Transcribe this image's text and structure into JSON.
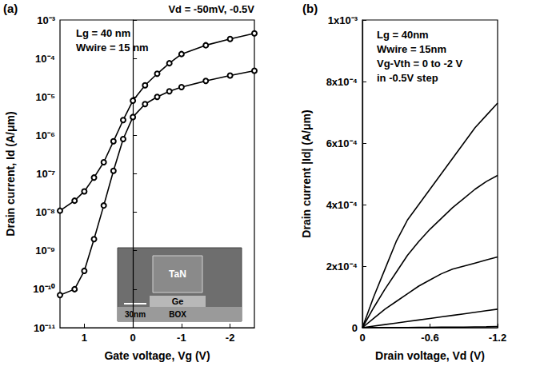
{
  "chart_data": [
    {
      "type": "line",
      "title": "(a)",
      "x_label": "Gate voltage, Vg (V)",
      "y_label": "Drain current, Id (A/μm)",
      "annotations": [
        "Vd = -50mV, -0.5V",
        "Lg = 40 nm",
        "Wwire = 15 nm"
      ],
      "inset_labels": [
        "TaN",
        "Ge",
        "30nm",
        "BOX"
      ],
      "log": "y",
      "grid": false,
      "marker": "circle",
      "color": "#000000",
      "x": [
        1.5,
        1.2,
        1.0,
        0.8,
        0.6,
        0.4,
        0.2,
        0,
        -0.25,
        -0.5,
        -0.75,
        -1,
        -1.5,
        -2,
        -2.5
      ],
      "series": [
        {
          "values": [
            1.1e-08,
            2e-08,
            3.5e-08,
            8e-08,
            2e-07,
            7e-07,
            2.5e-06,
            8e-06,
            2e-05,
            4e-05,
            7.5e-05,
            0.00013,
            0.00022,
            0.00032,
            0.00045
          ]
        },
        {
          "values": [
            7e-11,
            1e-10,
            3e-10,
            2e-09,
            1.5e-08,
            1.2e-07,
            8e-07,
            3e-06,
            6.5e-06,
            1e-05,
            1.4e-05,
            1.8e-05,
            2.6e-05,
            3.6e-05,
            4.8e-05
          ]
        }
      ],
      "xlim": [
        1.5,
        -2.5
      ],
      "xticks": [
        1,
        0,
        -1,
        -2
      ],
      "ylim": [
        1e-11,
        0.001
      ],
      "yticks": [
        {
          "value": 1e-11,
          "label": "10⁻¹¹"
        },
        {
          "value": 1e-10,
          "label": "10⁻¹⁰"
        },
        {
          "value": 1e-09,
          "label": "10⁻⁹"
        },
        {
          "value": 1e-08,
          "label": "10⁻⁸"
        },
        {
          "value": 1e-07,
          "label": "10⁻⁷"
        },
        {
          "value": 1e-06,
          "label": "10⁻⁶"
        },
        {
          "value": 1e-05,
          "label": "10⁻⁵"
        },
        {
          "value": 0.0001,
          "label": "10⁻⁴"
        },
        {
          "value": 0.001,
          "label": "10⁻³"
        }
      ]
    },
    {
      "type": "line",
      "title": "(b)",
      "x_label": "Drain voltage, Vd (V)",
      "y_label": "Drain current |Id| (A/μm)",
      "annotations": [
        "Lg = 40nm",
        "Wwire = 15nm",
        "Vg-Vth = 0 to -2 V",
        "in -0.5V step"
      ],
      "grid": false,
      "marker": "none",
      "color": "#000000",
      "x": [
        0,
        -0.1,
        -0.2,
        -0.3,
        -0.4,
        -0.5,
        -0.6,
        -0.7,
        -0.8,
        -0.9,
        -1.0,
        -1.1,
        -1.2
      ],
      "series": [
        {
          "values": [
            0,
            0.0001,
            0.00019,
            0.00028,
            0.00035,
            0.0004,
            0.00045,
            0.0005,
            0.00055,
            0.0006,
            0.00065,
            0.00069,
            0.00073
          ]
        },
        {
          "values": [
            0,
            6.5e-05,
            0.000125,
            0.00018,
            0.000235,
            0.00028,
            0.00032,
            0.000355,
            0.00039,
            0.00042,
            0.00045,
            0.000475,
            0.000495
          ]
        },
        {
          "values": [
            0,
            3e-05,
            6e-05,
            8.5e-05,
            0.00011,
            0.000135,
            0.000155,
            0.000175,
            0.00019,
            0.0002,
            0.00021,
            0.00022,
            0.00023
          ]
        },
        {
          "values": [
            0,
            5e-06,
            1e-05,
            1.5e-05,
            2e-05,
            2.5e-05,
            3e-05,
            3.5e-05,
            4e-05,
            4.5e-05,
            5e-05,
            5.5e-05,
            6e-05
          ]
        },
        {
          "values": [
            0,
            2e-07,
            4e-07,
            6e-07,
            8e-07,
            1e-06,
            1.2e-06,
            1.5e-06,
            1.8e-06,
            2e-06,
            2.5e-06,
            3e-06,
            4e-06
          ]
        }
      ],
      "xlim": [
        0,
        -1.2
      ],
      "xticks": [
        0,
        -0.6,
        -1.2
      ],
      "ylim": [
        0,
        0.001
      ],
      "yticks": [
        0,
        {
          "value": 0.0002,
          "label": "2x10⁻⁴"
        },
        {
          "value": 0.0004,
          "label": "4x10⁻⁴"
        },
        {
          "value": 0.0006,
          "label": "6x10⁻⁴"
        },
        {
          "value": 0.0008,
          "label": "8x10⁻⁴"
        },
        {
          "value": 0.001,
          "label": "1x10⁻³"
        }
      ]
    }
  ]
}
